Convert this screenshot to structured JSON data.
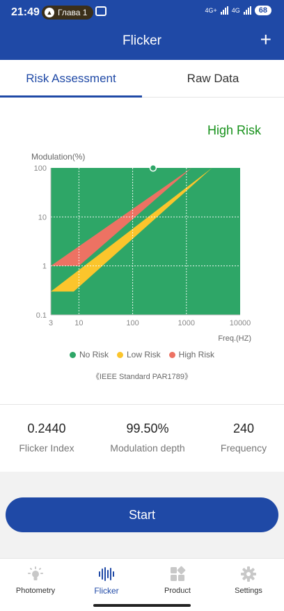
{
  "status_bar": {
    "time": "21:49",
    "pill_text": "Глава 1",
    "network_1": "4G+",
    "network_2": "4G",
    "battery": "68"
  },
  "header": {
    "title": "Flicker",
    "add_icon": "plus-icon"
  },
  "tabs": [
    {
      "label": "Risk Assessment",
      "active": true
    },
    {
      "label": "Raw Data",
      "active": false
    }
  ],
  "assessment": {
    "result": "High Risk",
    "result_color": "#16911a"
  },
  "chart_data": {
    "type": "area",
    "title": "",
    "ylabel": "Modulation(%)",
    "xlabel": "Freq.(HZ)",
    "x_scale": "log",
    "y_scale": "log",
    "xlim": [
      3,
      10000
    ],
    "ylim": [
      0.1,
      100
    ],
    "x_ticks": [
      {
        "value": 3,
        "label": "3"
      },
      {
        "value": 10,
        "label": "10"
      },
      {
        "value": 100,
        "label": "100"
      },
      {
        "value": 1000,
        "label": "1000"
      },
      {
        "value": 10000,
        "label": "10000"
      }
    ],
    "y_ticks": [
      {
        "value": 0.1,
        "label": "0.1"
      },
      {
        "value": 1,
        "label": "1"
      },
      {
        "value": 10,
        "label": "10"
      },
      {
        "value": 100,
        "label": "100"
      }
    ],
    "grid": true,
    "legend_position": "bottom",
    "regions": [
      {
        "name": "High Risk",
        "color": "#ed7263",
        "boundary": [
          [
            3,
            1
          ],
          [
            10,
            1
          ],
          [
            1250,
            100
          ]
        ]
      },
      {
        "name": "Low Risk",
        "color": "#fbc52c",
        "boundary": [
          [
            3,
            0.3
          ],
          [
            8,
            0.3
          ],
          [
            3000,
            100
          ]
        ]
      },
      {
        "name": "No Risk",
        "color": "#2ea667"
      }
    ],
    "point": {
      "x": 240,
      "y": 99.5,
      "color": "#2ea667"
    },
    "legend": [
      {
        "name": "No Risk",
        "color": "#2ea667"
      },
      {
        "name": "Low Risk",
        "color": "#fbc52c"
      },
      {
        "name": "High Risk",
        "color": "#ed7263"
      }
    ],
    "standard_note": "《IEEE Standard PAR1789》"
  },
  "metrics": [
    {
      "value": "0.2440",
      "label": "Flicker Index"
    },
    {
      "value": "99.50%",
      "label": "Modulation depth"
    },
    {
      "value": "240",
      "label": "Frequency"
    }
  ],
  "start_button": {
    "label": "Start"
  },
  "bottom_nav": [
    {
      "label": "Photometry",
      "icon": "bulb-icon"
    },
    {
      "label": "Flicker",
      "icon": "waveform-icon",
      "active": true
    },
    {
      "label": "Product",
      "icon": "grid-icon"
    },
    {
      "label": "Settings",
      "icon": "gear-icon"
    }
  ]
}
